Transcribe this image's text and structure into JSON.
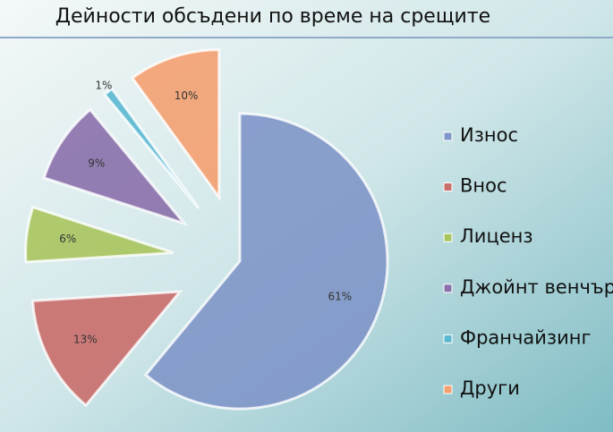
{
  "chart_data": {
    "type": "pie",
    "title": "Дейности обсъдени по време на срещите",
    "categories": [
      "Износ",
      "Внос",
      "Лиценз",
      "Джойнт венчър",
      "Франчайзинг",
      "Други"
    ],
    "values": [
      61,
      13,
      6,
      9,
      1,
      10
    ],
    "value_labels": [
      "61%",
      "13%",
      "6%",
      "9%",
      "1%",
      "10%"
    ],
    "colors": [
      "#7f96c8",
      "#c96d6a",
      "#a9c55e",
      "#8a70ab",
      "#5ab8d0",
      "#f4a070"
    ],
    "legend": "right"
  }
}
